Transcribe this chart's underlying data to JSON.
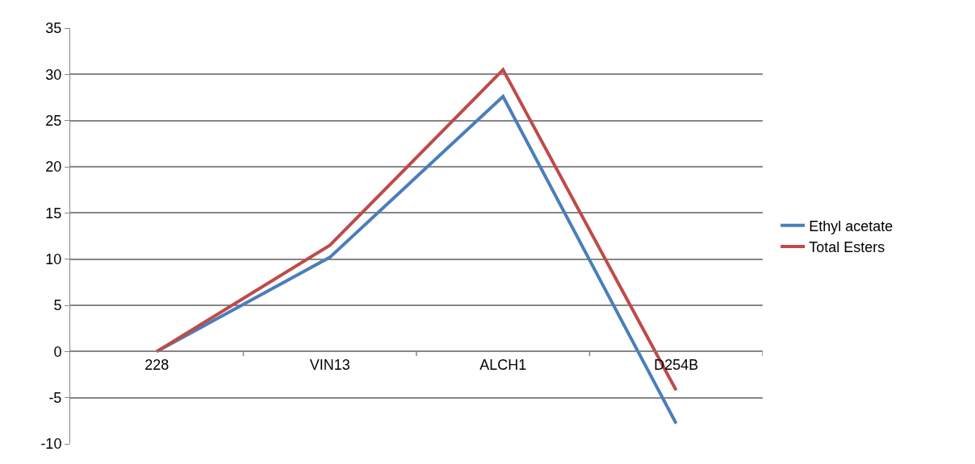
{
  "chart_data": {
    "type": "line",
    "categories": [
      "228",
      "VIN13",
      "ALCH1",
      "D254B"
    ],
    "series": [
      {
        "name": "Ethyl acetate",
        "color": "#4a7ebb",
        "values": [
          0,
          10.2,
          27.6,
          -7.8
        ]
      },
      {
        "name": "Total Esters",
        "color": "#be4b48",
        "values": [
          0,
          11.5,
          30.5,
          -4.2
        ]
      }
    ],
    "ylim": [
      -10,
      35
    ],
    "yticks": [
      -10,
      -5,
      0,
      5,
      10,
      15,
      20,
      25,
      30,
      35
    ],
    "grid": "y",
    "legend": "right",
    "marker": "none",
    "line_style": "solid"
  }
}
